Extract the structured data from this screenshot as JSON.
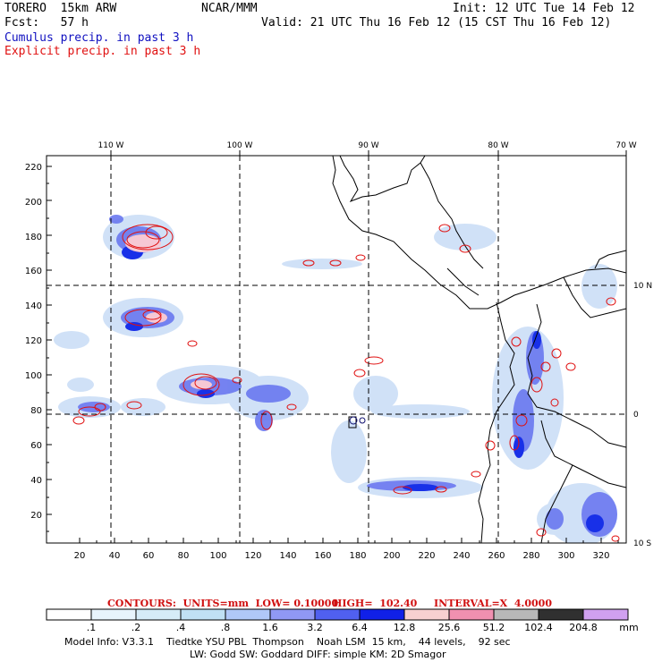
{
  "header": {
    "model": "TORERO  15km ARW",
    "org": "NCAR/MMM",
    "init": "Init: 12 UTC Tue 14 Feb 12",
    "fcst": "Fcst:   57 h",
    "valid": "Valid: 21 UTC Thu 16 Feb 12 (15 CST Thu 16 Feb 12)",
    "legend_cumulus": "Cumulus precip. in past 3 h",
    "legend_explicit": "Explicit precip. in past 3 h"
  },
  "map": {
    "lon_labels": [
      "110 W",
      "100 W",
      "90 W",
      "80 W",
      "70 W"
    ],
    "lat_labels": [
      "10 N",
      "0",
      "10 S"
    ],
    "y_ticks": [
      "220",
      "200",
      "180",
      "160",
      "140",
      "120",
      "100",
      "80",
      "60",
      "40",
      "20"
    ],
    "x_ticks": [
      "20",
      "40",
      "60",
      "80",
      "100",
      "120",
      "140",
      "160",
      "180",
      "200",
      "220",
      "240",
      "260",
      "280",
      "300",
      "320"
    ]
  },
  "contours": {
    "units": "CONTOURS:  UNITS=mm  LOW= 0.10000",
    "high": "HIGH=  102.40",
    "interval": "INTERVAL=X  4.0000"
  },
  "colorbar": {
    "labels": [
      ".1",
      ".2",
      ".4",
      ".8",
      "1.6",
      "3.2",
      "6.4",
      "12.8",
      "25.6",
      "51.2",
      "102.4",
      "204.8"
    ],
    "units": "mm",
    "colors": [
      "#ffffff",
      "#e8f4fc",
      "#d6ecf8",
      "#c0e0f4",
      "#b0c8f8",
      "#9098f4",
      "#5060f0",
      "#1020e8",
      "#f8d0d0",
      "#f090b0",
      "#b8b8b8",
      "#303030",
      "#d0a0f0"
    ]
  },
  "footer": {
    "line1": "Model Info: V3.3.1    Tiedtke YSU PBL  Thompson    Noah LSM  15 km,    44 levels,    92 sec",
    "line2": "LW: Godd SW: Goddard DIFF: simple KM: 2D Smagor"
  }
}
